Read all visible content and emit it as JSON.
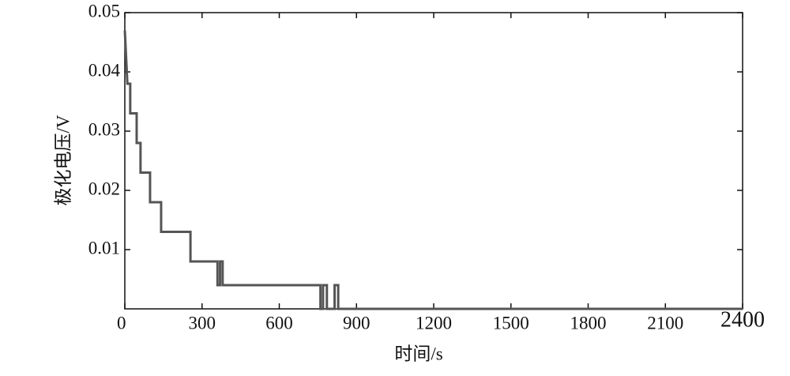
{
  "chart_data": {
    "type": "line",
    "x_label": "时间/s",
    "y_label": "极化电压/V",
    "x": [
      0,
      10,
      21,
      21,
      46,
      46,
      61,
      61,
      98,
      98,
      141,
      141,
      255,
      255,
      360,
      360,
      370,
      370,
      380,
      380,
      760,
      760,
      770,
      770,
      785,
      785,
      815,
      815,
      829,
      829,
      2400
    ],
    "series": [
      {
        "name": "极化电压",
        "color": "#555555",
        "values": [
          0.047,
          0.038,
          0.038,
          0.033,
          0.033,
          0.028,
          0.028,
          0.023,
          0.023,
          0.018,
          0.018,
          0.013,
          0.013,
          0.008,
          0.008,
          0.004,
          0.004,
          0.008,
          0.008,
          0.004,
          0.004,
          0,
          0,
          0.004,
          0.004,
          0,
          0,
          0.004,
          0.004,
          0,
          0
        ]
      }
    ],
    "xlim": [
      0,
      2400
    ],
    "xticks": [
      0,
      300,
      600,
      900,
      1200,
      1500,
      1800,
      2100,
      2400
    ],
    "ylim": [
      0,
      0.05
    ],
    "yticks": [
      0.01,
      0.02,
      0.03,
      0.04,
      0.05
    ]
  }
}
